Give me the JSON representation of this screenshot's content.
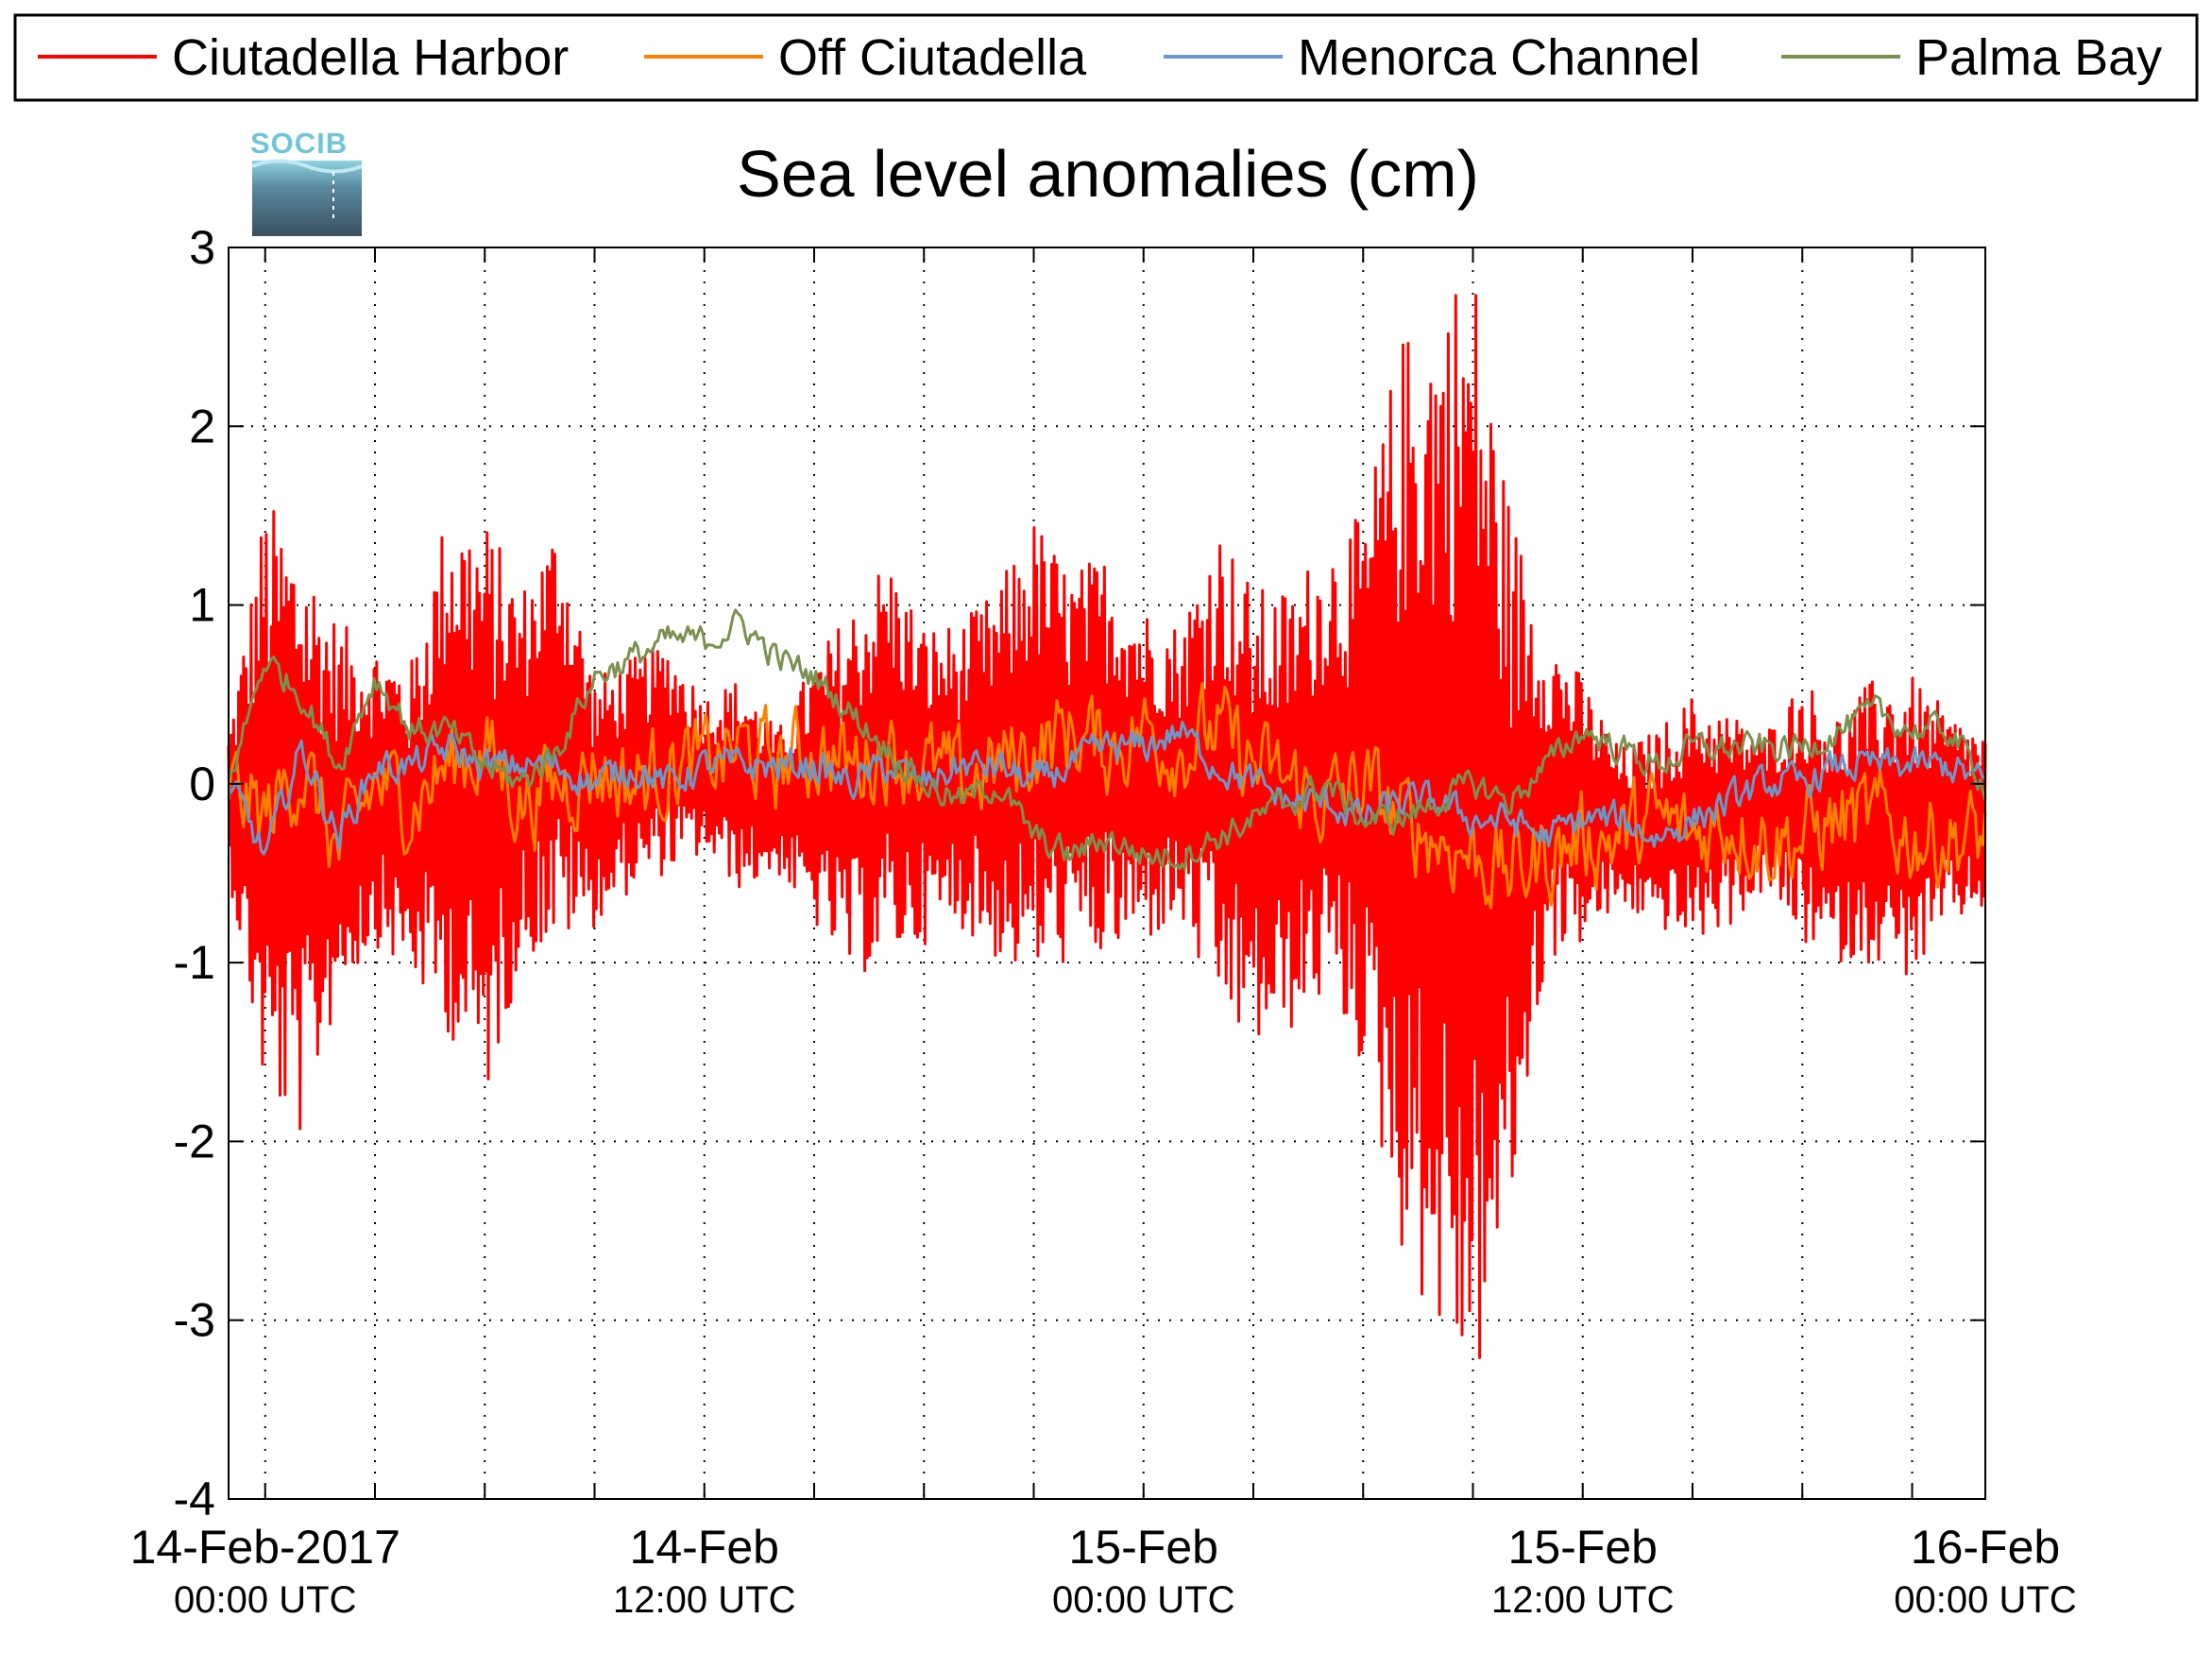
{
  "chart_data": {
    "type": "line",
    "title": "Sea level anomalies (cm)",
    "xlabel": "",
    "ylabel": "",
    "ylim": [
      -4,
      3
    ],
    "yticks": [
      3,
      2,
      1,
      0,
      -1,
      -2,
      -3,
      -4
    ],
    "xlim_hours": [
      -1,
      47
    ],
    "grid": true,
    "legend_position": "top",
    "x_tick_labels": [
      {
        "hours": 0,
        "date": "14-Feb-2017",
        "time": "00:00 UTC"
      },
      {
        "hours": 12,
        "date": "14-Feb",
        "time": "12:00 UTC"
      },
      {
        "hours": 24,
        "date": "15-Feb",
        "time": "00:00 UTC"
      },
      {
        "hours": 36,
        "date": "15-Feb",
        "time": "12:00 UTC"
      },
      {
        "hours": 47,
        "date": "16-Feb",
        "time": "00:00 UTC"
      }
    ],
    "x_minor_ticks_hours": [
      0,
      3,
      6,
      9,
      12,
      15,
      18,
      21,
      24,
      27,
      30,
      33,
      36,
      39,
      42,
      45
    ],
    "series": [
      {
        "name": "Ciutadella Harbor",
        "color": "#ff0000",
        "x_hours": [
          -1,
          0,
          1,
          2,
          3,
          4,
          5,
          6,
          7,
          8,
          9,
          10,
          11,
          12,
          13,
          14,
          15,
          16,
          17,
          18,
          19,
          20,
          21,
          22,
          23,
          24,
          25,
          26,
          27,
          28,
          29,
          30,
          31,
          32,
          33,
          34,
          35,
          36,
          37,
          38,
          39,
          40,
          41,
          42,
          43,
          44,
          45,
          46,
          47
        ],
        "upper": [
          0.3,
          1.6,
          1.4,
          0.9,
          0.8,
          0.7,
          1.6,
          1.5,
          1.1,
          1.5,
          0.6,
          0.7,
          0.8,
          0.5,
          0.6,
          0.3,
          0.7,
          1.0,
          1.3,
          0.9,
          0.9,
          1.1,
          1.5,
          1.2,
          1.3,
          1.0,
          0.9,
          1.5,
          1.1,
          1.1,
          1.4,
          1.5,
          2.5,
          2.8,
          3.0,
          1.6,
          0.9,
          0.6,
          0.2,
          0.3,
          0.5,
          0.4,
          0.3,
          0.6,
          0.4,
          0.6,
          0.6,
          0.4,
          0.3
        ],
        "lower": [
          -0.5,
          -1.8,
          -2.0,
          -1.2,
          -0.9,
          -1.1,
          -1.4,
          -1.8,
          -1.0,
          -0.9,
          -0.8,
          -0.6,
          -0.5,
          -0.4,
          -0.6,
          -0.5,
          -0.8,
          -1.1,
          -1.0,
          -0.9,
          -0.8,
          -1.0,
          -1.1,
          -1.0,
          -1.0,
          -0.9,
          -0.8,
          -1.3,
          -1.5,
          -1.4,
          -1.2,
          -1.6,
          -2.6,
          -3.1,
          -3.5,
          -2.5,
          -1.0,
          -0.9,
          -0.7,
          -0.8,
          -0.9,
          -0.8,
          -0.6,
          -0.9,
          -1.0,
          -1.0,
          -1.1,
          -0.8,
          -0.7
        ]
      },
      {
        "name": "Off Ciutadella",
        "color": "#ff8000",
        "x_hours": [
          -1,
          0,
          1,
          2,
          3,
          4,
          5,
          6,
          7,
          8,
          9,
          10,
          11,
          12,
          13,
          14,
          15,
          16,
          17,
          18,
          19,
          20,
          21,
          22,
          23,
          24,
          25,
          26,
          27,
          28,
          29,
          30,
          31,
          32,
          33,
          34,
          35,
          36,
          37,
          38,
          39,
          40,
          41,
          42,
          43,
          44,
          45,
          46,
          47
        ],
        "values": [
          0.0,
          -0.2,
          0.1,
          -0.4,
          0.0,
          -0.1,
          0.1,
          0.2,
          -0.1,
          0.0,
          0.1,
          0.0,
          0.1,
          0.1,
          0.2,
          0.1,
          0.2,
          0.1,
          0.2,
          0.1,
          0.0,
          0.1,
          0.2,
          0.3,
          0.2,
          0.3,
          0.2,
          0.3,
          0.1,
          0.0,
          -0.1,
          0.0,
          -0.2,
          -0.3,
          -0.4,
          -0.5,
          -0.4,
          -0.3,
          -0.3,
          -0.2,
          -0.3,
          -0.2,
          -0.3,
          -0.3,
          -0.2,
          -0.2,
          -0.3,
          -0.3,
          -0.3
        ]
      },
      {
        "name": "Menorca Channel",
        "color": "#6b98c8",
        "x_hours": [
          -1,
          0,
          1,
          2,
          3,
          4,
          5,
          6,
          7,
          8,
          9,
          10,
          11,
          12,
          13,
          14,
          15,
          16,
          17,
          18,
          19,
          20,
          21,
          22,
          23,
          24,
          25,
          26,
          27,
          28,
          29,
          30,
          31,
          32,
          33,
          34,
          35,
          36,
          37,
          38,
          39,
          40,
          41,
          42,
          43,
          44,
          45,
          46,
          47
        ],
        "values": [
          0.0,
          -0.4,
          0.2,
          -0.3,
          0.1,
          0.1,
          0.2,
          0.1,
          0.1,
          0.1,
          0.0,
          0.1,
          0.0,
          0.1,
          0.1,
          0.1,
          0.1,
          0.0,
          0.1,
          0.0,
          0.1,
          0.1,
          0.0,
          0.1,
          0.2,
          0.2,
          0.3,
          0.1,
          0.0,
          -0.1,
          -0.1,
          -0.2,
          -0.1,
          -0.1,
          -0.2,
          -0.2,
          -0.3,
          -0.2,
          -0.2,
          -0.3,
          -0.2,
          -0.1,
          0.0,
          0.0,
          0.1,
          0.1,
          0.1,
          0.1,
          0.0
        ]
      },
      {
        "name": "Palma Bay",
        "color": "#7a9150",
        "x_hours": [
          -1,
          0,
          1,
          2,
          3,
          4,
          5,
          6,
          7,
          8,
          9,
          10,
          11,
          12,
          13,
          14,
          15,
          16,
          17,
          18,
          19,
          20,
          21,
          22,
          23,
          24,
          25,
          26,
          27,
          28,
          29,
          30,
          31,
          32,
          33,
          34,
          35,
          36,
          37,
          38,
          39,
          40,
          41,
          42,
          43,
          44,
          45,
          46,
          47
        ],
        "values": [
          0.0,
          0.7,
          0.5,
          0.1,
          0.6,
          0.3,
          0.3,
          0.1,
          0.0,
          0.2,
          0.6,
          0.7,
          0.8,
          0.8,
          0.9,
          0.7,
          0.6,
          0.4,
          0.2,
          0.0,
          -0.1,
          0.0,
          -0.3,
          -0.4,
          -0.3,
          -0.4,
          -0.4,
          -0.3,
          -0.2,
          -0.1,
          0.0,
          -0.2,
          -0.2,
          -0.1,
          0.0,
          -0.1,
          0.1,
          0.3,
          0.2,
          0.1,
          0.2,
          0.2,
          0.2,
          0.2,
          0.3,
          0.4,
          0.3,
          0.3,
          0.0
        ]
      }
    ]
  },
  "logo": {
    "text": "SOCIB"
  }
}
